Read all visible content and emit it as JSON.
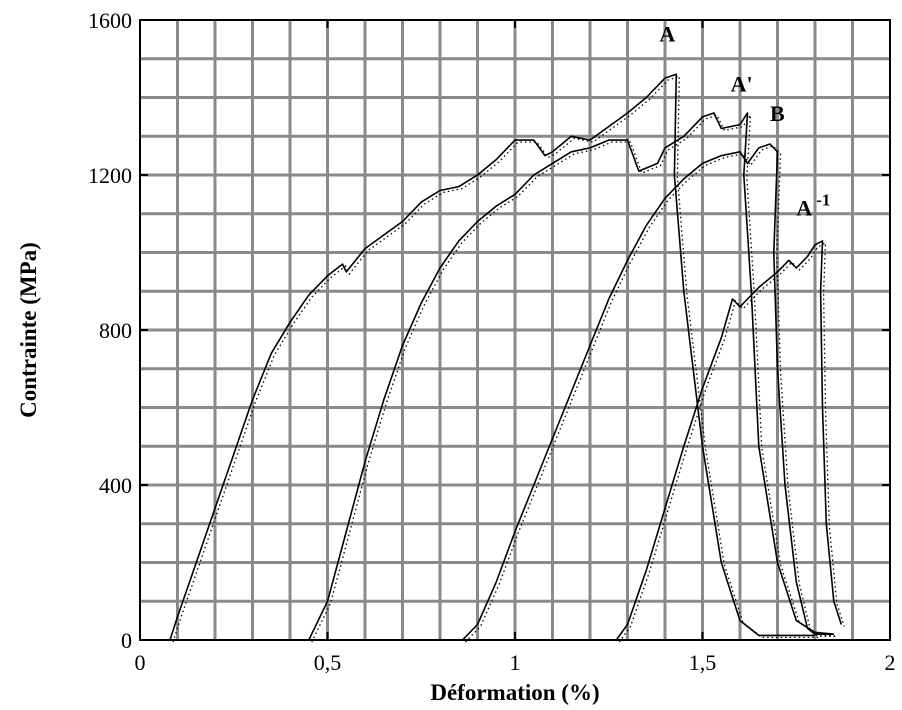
{
  "chart_data": {
    "type": "line",
    "xlabel": "Déformation (%)",
    "ylabel": "Contrainte (MPa)",
    "xlim": [
      0,
      2
    ],
    "ylim": [
      0,
      1600
    ],
    "x_ticks": [
      {
        "value": 0,
        "label": "0"
      },
      {
        "value": 0.5,
        "label": "0,5"
      },
      {
        "value": 1,
        "label": "1"
      },
      {
        "value": 1.5,
        "label": "1,5"
      },
      {
        "value": 2,
        "label": "2"
      }
    ],
    "y_ticks": [
      {
        "value": 0,
        "label": "0"
      },
      {
        "value": 400,
        "label": "400"
      },
      {
        "value": 800,
        "label": "800"
      },
      {
        "value": 1200,
        "label": "1200"
      },
      {
        "value": 1600,
        "label": "1600"
      }
    ],
    "grid": true,
    "grid_step_x": 0.1,
    "grid_step_y": 100,
    "series": [
      {
        "name": "A",
        "label_text": "A",
        "label_sup": "",
        "label_at": [
          1.385,
          1545
        ],
        "points": [
          [
            0.08,
            0
          ],
          [
            0.1,
            60
          ],
          [
            0.15,
            200
          ],
          [
            0.2,
            340
          ],
          [
            0.25,
            480
          ],
          [
            0.3,
            620
          ],
          [
            0.35,
            740
          ],
          [
            0.4,
            820
          ],
          [
            0.45,
            890
          ],
          [
            0.5,
            940
          ],
          [
            0.54,
            970
          ],
          [
            0.55,
            950
          ],
          [
            0.6,
            1010
          ],
          [
            0.7,
            1080
          ],
          [
            0.75,
            1130
          ],
          [
            0.8,
            1160
          ],
          [
            0.85,
            1170
          ],
          [
            0.9,
            1200
          ],
          [
            0.95,
            1240
          ],
          [
            1.0,
            1290
          ],
          [
            1.05,
            1290
          ],
          [
            1.08,
            1250
          ],
          [
            1.1,
            1260
          ],
          [
            1.15,
            1300
          ],
          [
            1.2,
            1290
          ],
          [
            1.3,
            1360
          ],
          [
            1.35,
            1400
          ],
          [
            1.4,
            1450
          ],
          [
            1.43,
            1460
          ],
          [
            1.425,
            1200
          ],
          [
            1.45,
            900
          ],
          [
            1.5,
            500
          ],
          [
            1.55,
            200
          ],
          [
            1.6,
            50
          ],
          [
            1.65,
            12
          ],
          [
            1.8,
            12
          ]
        ]
      },
      {
        "name": "A'",
        "label_text": "A'",
        "label_sup": "",
        "label_at": [
          1.575,
          1415
        ],
        "points": [
          [
            0.45,
            0
          ],
          [
            0.5,
            100
          ],
          [
            0.55,
            280
          ],
          [
            0.6,
            460
          ],
          [
            0.65,
            620
          ],
          [
            0.7,
            760
          ],
          [
            0.75,
            870
          ],
          [
            0.8,
            960
          ],
          [
            0.85,
            1030
          ],
          [
            0.9,
            1080
          ],
          [
            0.95,
            1120
          ],
          [
            1.0,
            1150
          ],
          [
            1.05,
            1200
          ],
          [
            1.1,
            1230
          ],
          [
            1.15,
            1260
          ],
          [
            1.2,
            1270
          ],
          [
            1.25,
            1290
          ],
          [
            1.3,
            1290
          ],
          [
            1.33,
            1210
          ],
          [
            1.38,
            1230
          ],
          [
            1.4,
            1270
          ],
          [
            1.45,
            1300
          ],
          [
            1.5,
            1350
          ],
          [
            1.53,
            1360
          ],
          [
            1.55,
            1320
          ],
          [
            1.6,
            1330
          ],
          [
            1.62,
            1360
          ],
          [
            1.61,
            1200
          ],
          [
            1.63,
            900
          ],
          [
            1.65,
            500
          ],
          [
            1.7,
            200
          ],
          [
            1.75,
            50
          ],
          [
            1.8,
            20
          ],
          [
            1.85,
            15
          ]
        ]
      },
      {
        "name": "B",
        "label_text": "B",
        "label_sup": "",
        "label_at": [
          1.68,
          1340
        ],
        "points": [
          [
            0.86,
            0
          ],
          [
            0.9,
            40
          ],
          [
            0.95,
            150
          ],
          [
            1.0,
            280
          ],
          [
            1.05,
            400
          ],
          [
            1.1,
            520
          ],
          [
            1.15,
            640
          ],
          [
            1.2,
            760
          ],
          [
            1.25,
            880
          ],
          [
            1.3,
            980
          ],
          [
            1.35,
            1070
          ],
          [
            1.4,
            1140
          ],
          [
            1.45,
            1190
          ],
          [
            1.5,
            1230
          ],
          [
            1.55,
            1250
          ],
          [
            1.6,
            1260
          ],
          [
            1.62,
            1230
          ],
          [
            1.65,
            1270
          ],
          [
            1.68,
            1280
          ],
          [
            1.7,
            1260
          ],
          [
            1.69,
            1000
          ],
          [
            1.7,
            700
          ],
          [
            1.72,
            400
          ],
          [
            1.75,
            150
          ],
          [
            1.78,
            30
          ],
          [
            1.8,
            15
          ],
          [
            1.85,
            15
          ]
        ]
      },
      {
        "name": "A-1",
        "label_text": "A",
        "label_sup": "-1",
        "label_at": [
          1.75,
          1095
        ],
        "points": [
          [
            1.27,
            0
          ],
          [
            1.3,
            40
          ],
          [
            1.35,
            180
          ],
          [
            1.4,
            340
          ],
          [
            1.45,
            500
          ],
          [
            1.5,
            650
          ],
          [
            1.55,
            780
          ],
          [
            1.58,
            880
          ],
          [
            1.6,
            860
          ],
          [
            1.62,
            880
          ],
          [
            1.65,
            910
          ],
          [
            1.7,
            950
          ],
          [
            1.73,
            980
          ],
          [
            1.75,
            960
          ],
          [
            1.78,
            990
          ],
          [
            1.8,
            1020
          ],
          [
            1.82,
            1030
          ],
          [
            1.815,
            900
          ],
          [
            1.82,
            600
          ],
          [
            1.83,
            300
          ],
          [
            1.85,
            100
          ],
          [
            1.87,
            40
          ]
        ]
      }
    ]
  }
}
